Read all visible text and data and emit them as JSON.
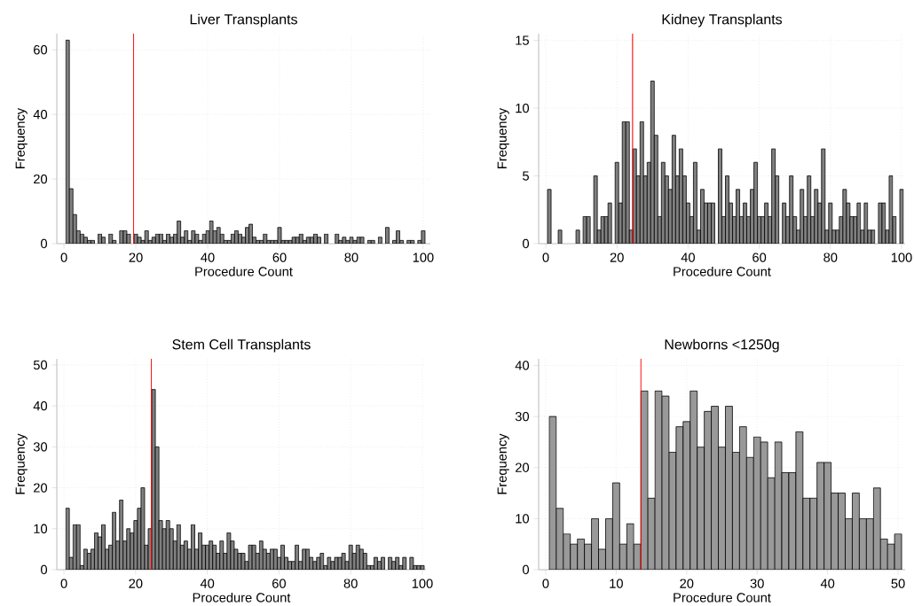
{
  "chart_data": [
    {
      "type": "histogram",
      "title": "Liver Transplants",
      "xlabel": "Procedure Count",
      "ylabel": "Frequency",
      "color": "#808080",
      "bins": [
        0.5,
        1.5,
        2.5,
        3.5,
        4.5,
        5.5,
        6.5,
        7.5,
        8.5,
        9.5,
        10.5,
        11.5,
        12.5,
        13.5,
        14.5,
        15.5,
        16.5,
        17.5,
        18.5,
        19.5,
        20.5,
        21.5,
        22.5,
        23.5,
        24.5,
        25.5,
        26.5,
        27.5,
        28.5,
        29.5,
        30.5,
        31.5,
        32.5,
        33.5,
        34.5,
        35.5,
        36.5,
        37.5,
        38.5,
        39.5,
        40.5,
        41.5,
        42.5,
        43.5,
        44.5,
        45.5,
        46.5,
        47.5,
        48.5,
        49.5,
        50.5,
        51.5,
        52.5,
        53.5,
        54.5,
        55.5,
        56.5,
        57.5,
        58.5,
        59.5,
        60.5,
        61.5,
        62.5,
        63.5,
        64.5,
        65.5,
        66.5,
        67.5,
        68.5,
        69.5,
        70.5,
        71.5,
        72.5,
        73.5,
        74.5,
        75.5,
        76.5,
        77.5,
        78.5,
        79.5,
        80.5,
        81.5,
        82.5,
        83.5,
        84.5,
        85.5,
        86.5,
        87.5,
        88.5,
        89.5,
        90.5,
        91.5,
        92.5,
        93.5,
        94.5,
        95.5,
        96.5,
        97.5,
        98.5,
        99.5,
        100.5
      ],
      "values": [
        63,
        17,
        9,
        4,
        3,
        2,
        1,
        1,
        0,
        3,
        2,
        0,
        3,
        1,
        0,
        4,
        4,
        3,
        0,
        3,
        2,
        1,
        4,
        1,
        2,
        3,
        3,
        1,
        3,
        2,
        3,
        7,
        2,
        4,
        1,
        4,
        3,
        1,
        3,
        4,
        7,
        4,
        5,
        3,
        1,
        1,
        3,
        4,
        3,
        2,
        5,
        6,
        2,
        1,
        1,
        3,
        1,
        1,
        1,
        5,
        1,
        1,
        1,
        2,
        2,
        3,
        1,
        2,
        2,
        3,
        2,
        0,
        3,
        0,
        0,
        3,
        1,
        2,
        1,
        2,
        1,
        2,
        2,
        0,
        1,
        1,
        0,
        2,
        0,
        5,
        0,
        1,
        4,
        1,
        0,
        1,
        1,
        0,
        1,
        4
      ],
      "xlim": [
        -2,
        102
      ],
      "ylim": [
        0,
        65
      ],
      "xticks": [
        0,
        20,
        40,
        60,
        80,
        100
      ],
      "yticks": [
        0,
        20,
        40,
        60
      ],
      "grid": true,
      "ref_lines": [
        {
          "axis": "x",
          "value": 19.4,
          "color": "#ff0000"
        }
      ]
    },
    {
      "type": "histogram",
      "title": "Kidney Transplants",
      "xlabel": "Procedure Count",
      "ylabel": "Frequency",
      "color": "#808080",
      "bins": [
        0.5,
        1.5,
        2.5,
        3.5,
        4.5,
        5.5,
        6.5,
        7.5,
        8.5,
        9.5,
        10.5,
        11.5,
        12.5,
        13.5,
        14.5,
        15.5,
        16.5,
        17.5,
        18.5,
        19.5,
        20.5,
        21.5,
        22.5,
        23.5,
        24.5,
        25.5,
        26.5,
        27.5,
        28.5,
        29.5,
        30.5,
        31.5,
        32.5,
        33.5,
        34.5,
        35.5,
        36.5,
        37.5,
        38.5,
        39.5,
        40.5,
        41.5,
        42.5,
        43.5,
        44.5,
        45.5,
        46.5,
        47.5,
        48.5,
        49.5,
        50.5,
        51.5,
        52.5,
        53.5,
        54.5,
        55.5,
        56.5,
        57.5,
        58.5,
        59.5,
        60.5,
        61.5,
        62.5,
        63.5,
        64.5,
        65.5,
        66.5,
        67.5,
        68.5,
        69.5,
        70.5,
        71.5,
        72.5,
        73.5,
        74.5,
        75.5,
        76.5,
        77.5,
        78.5,
        79.5,
        80.5,
        81.5,
        82.5,
        83.5,
        84.5,
        85.5,
        86.5,
        87.5,
        88.5,
        89.5,
        90.5,
        91.5,
        92.5,
        93.5,
        94.5,
        95.5,
        96.5,
        97.5,
        98.5,
        99.5,
        100.5
      ],
      "values": [
        4,
        0,
        0,
        1,
        0,
        0,
        0,
        0,
        1,
        0,
        2,
        2,
        0,
        5,
        1,
        2,
        2,
        3,
        0,
        6,
        3,
        9,
        9,
        1,
        7,
        5,
        9,
        5,
        6,
        12,
        8,
        2,
        6,
        5,
        4,
        8,
        5,
        7,
        5,
        3,
        2,
        6,
        1,
        4,
        3,
        3,
        3,
        0,
        7,
        2,
        5,
        3,
        2,
        4,
        2,
        3,
        2,
        4,
        6,
        2,
        2,
        3,
        2,
        7,
        5,
        0,
        3,
        2,
        5,
        2,
        1,
        4,
        2,
        5,
        2,
        4,
        3,
        7,
        1,
        3,
        1,
        1,
        2,
        4,
        3,
        2,
        2,
        3,
        1,
        3,
        1,
        1,
        0,
        3,
        3,
        1,
        5,
        2,
        0,
        4
      ],
      "xlim": [
        -2,
        101
      ],
      "ylim": [
        0,
        15.5
      ],
      "xticks": [
        0,
        20,
        40,
        60,
        80,
        100
      ],
      "yticks": [
        0,
        5,
        10,
        15
      ],
      "grid": true,
      "ref_lines": [
        {
          "axis": "x",
          "value": 24.4,
          "color": "#ff0000"
        }
      ]
    },
    {
      "type": "histogram",
      "title": "Stem Cell Transplants",
      "xlabel": "Procedure Count",
      "ylabel": "Frequency",
      "color": "#808080",
      "bins": [
        0.5,
        1.5,
        2.5,
        3.5,
        4.5,
        5.5,
        6.5,
        7.5,
        8.5,
        9.5,
        10.5,
        11.5,
        12.5,
        13.5,
        14.5,
        15.5,
        16.5,
        17.5,
        18.5,
        19.5,
        20.5,
        21.5,
        22.5,
        23.5,
        24.5,
        25.5,
        26.5,
        27.5,
        28.5,
        29.5,
        30.5,
        31.5,
        32.5,
        33.5,
        34.5,
        35.5,
        36.5,
        37.5,
        38.5,
        39.5,
        40.5,
        41.5,
        42.5,
        43.5,
        44.5,
        45.5,
        46.5,
        47.5,
        48.5,
        49.5,
        50.5,
        51.5,
        52.5,
        53.5,
        54.5,
        55.5,
        56.5,
        57.5,
        58.5,
        59.5,
        60.5,
        61.5,
        62.5,
        63.5,
        64.5,
        65.5,
        66.5,
        67.5,
        68.5,
        69.5,
        70.5,
        71.5,
        72.5,
        73.5,
        74.5,
        75.5,
        76.5,
        77.5,
        78.5,
        79.5,
        80.5,
        81.5,
        82.5,
        83.5,
        84.5,
        85.5,
        86.5,
        87.5,
        88.5,
        89.5,
        90.5,
        91.5,
        92.5,
        93.5,
        94.5,
        95.5,
        96.5,
        97.5,
        98.5,
        99.5,
        100.5
      ],
      "values": [
        15,
        3,
        11,
        11,
        1,
        5,
        4,
        5,
        9,
        8,
        11,
        5,
        6,
        14,
        7,
        17,
        7,
        10,
        9,
        12,
        15,
        20,
        6,
        10,
        44,
        30,
        12,
        10,
        12,
        10,
        7,
        11,
        6,
        7,
        5,
        11,
        5,
        9,
        6,
        6,
        7,
        6,
        4,
        7,
        4,
        9,
        7,
        5,
        4,
        4,
        2,
        6,
        6,
        4,
        7,
        5,
        4,
        5,
        5,
        3,
        6,
        3,
        2,
        2,
        6,
        2,
        5,
        5,
        3,
        2,
        3,
        4,
        1,
        3,
        2,
        3,
        3,
        4,
        2,
        6,
        4,
        6,
        5,
        4,
        1,
        1,
        3,
        2,
        3,
        0,
        3,
        2,
        3,
        1,
        3,
        0,
        3,
        1,
        1,
        1
      ],
      "xlim": [
        -2,
        101
      ],
      "ylim": [
        0,
        51.5
      ],
      "xticks": [
        0,
        20,
        40,
        60,
        80,
        100
      ],
      "yticks": [
        0,
        10,
        20,
        30,
        40,
        50
      ],
      "grid": true,
      "ref_lines": [
        {
          "axis": "x",
          "value": 24.4,
          "color": "#ff0000"
        }
      ]
    },
    {
      "type": "histogram",
      "title": "Newborns <1250g",
      "xlabel": "Procedure Count",
      "ylabel": "Frequency",
      "color": "#999999",
      "bins": [
        0.5,
        1.5,
        2.5,
        3.5,
        4.5,
        5.5,
        6.5,
        7.5,
        8.5,
        9.5,
        10.5,
        11.5,
        12.5,
        13.5,
        14.5,
        15.5,
        16.5,
        17.5,
        18.5,
        19.5,
        20.5,
        21.5,
        22.5,
        23.5,
        24.5,
        25.5,
        26.5,
        27.5,
        28.5,
        29.5,
        30.5,
        31.5,
        32.5,
        33.5,
        34.5,
        35.5,
        36.5,
        37.5,
        38.5,
        39.5,
        40.5,
        41.5,
        42.5,
        43.5,
        44.5,
        45.5,
        46.5,
        47.5,
        48.5,
        49.5,
        50.5
      ],
      "values": [
        30,
        12,
        7,
        5,
        6,
        5,
        10,
        4,
        10,
        17,
        5,
        9,
        5,
        35,
        14,
        35,
        34,
        23,
        28,
        29,
        35,
        24,
        31,
        32,
        24,
        32,
        23,
        28,
        22,
        26,
        25,
        18,
        25,
        19,
        19,
        27,
        14,
        14,
        21,
        21,
        15,
        15,
        10,
        15,
        10,
        10,
        16,
        6,
        5,
        7
      ],
      "xlim": [
        -1,
        51
      ],
      "ylim": [
        0,
        41.3
      ],
      "xticks": [
        0,
        10,
        20,
        30,
        40,
        50
      ],
      "yticks": [
        0,
        10,
        20,
        30,
        40
      ],
      "grid": true,
      "ref_lines": [
        {
          "axis": "x",
          "value": 13.5,
          "color": "#ff0000"
        }
      ]
    }
  ]
}
